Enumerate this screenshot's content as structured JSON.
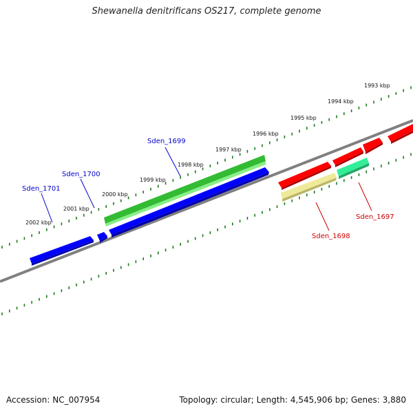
{
  "title": "Shewanella denitrificans OS217, complete genome",
  "footer": {
    "accession": "Accession: NC_007954",
    "topology": "Topology: circular; Length: 4,545,906 bp; Genes: 3,880"
  },
  "colors": {
    "backbone": "#808080",
    "ticks": "#1a7a1a",
    "gene_blue": "#0000ff",
    "gene_green": "#33bb33",
    "gene_red": "#ff0000",
    "gene_yellow": "#eeea99",
    "gene_teal": "#33ee99",
    "label_blue": "#0000cc",
    "label_red": "#cc0000"
  },
  "scale_labels": [
    "1993 kbp",
    "1994 kbp",
    "1995 kbp",
    "1996 kbp",
    "1997 kbp",
    "1998 kbp",
    "1999 kbp",
    "2000 kbp",
    "2001 kbp",
    "2002 kbp"
  ],
  "gene_labels": [
    {
      "name": "Sden_1699",
      "color": "blue"
    },
    {
      "name": "Sden_1700",
      "color": "blue"
    },
    {
      "name": "Sden_1701",
      "color": "blue"
    },
    {
      "name": "Sden_1697",
      "color": "red"
    },
    {
      "name": "Sden_1698",
      "color": "red"
    }
  ]
}
